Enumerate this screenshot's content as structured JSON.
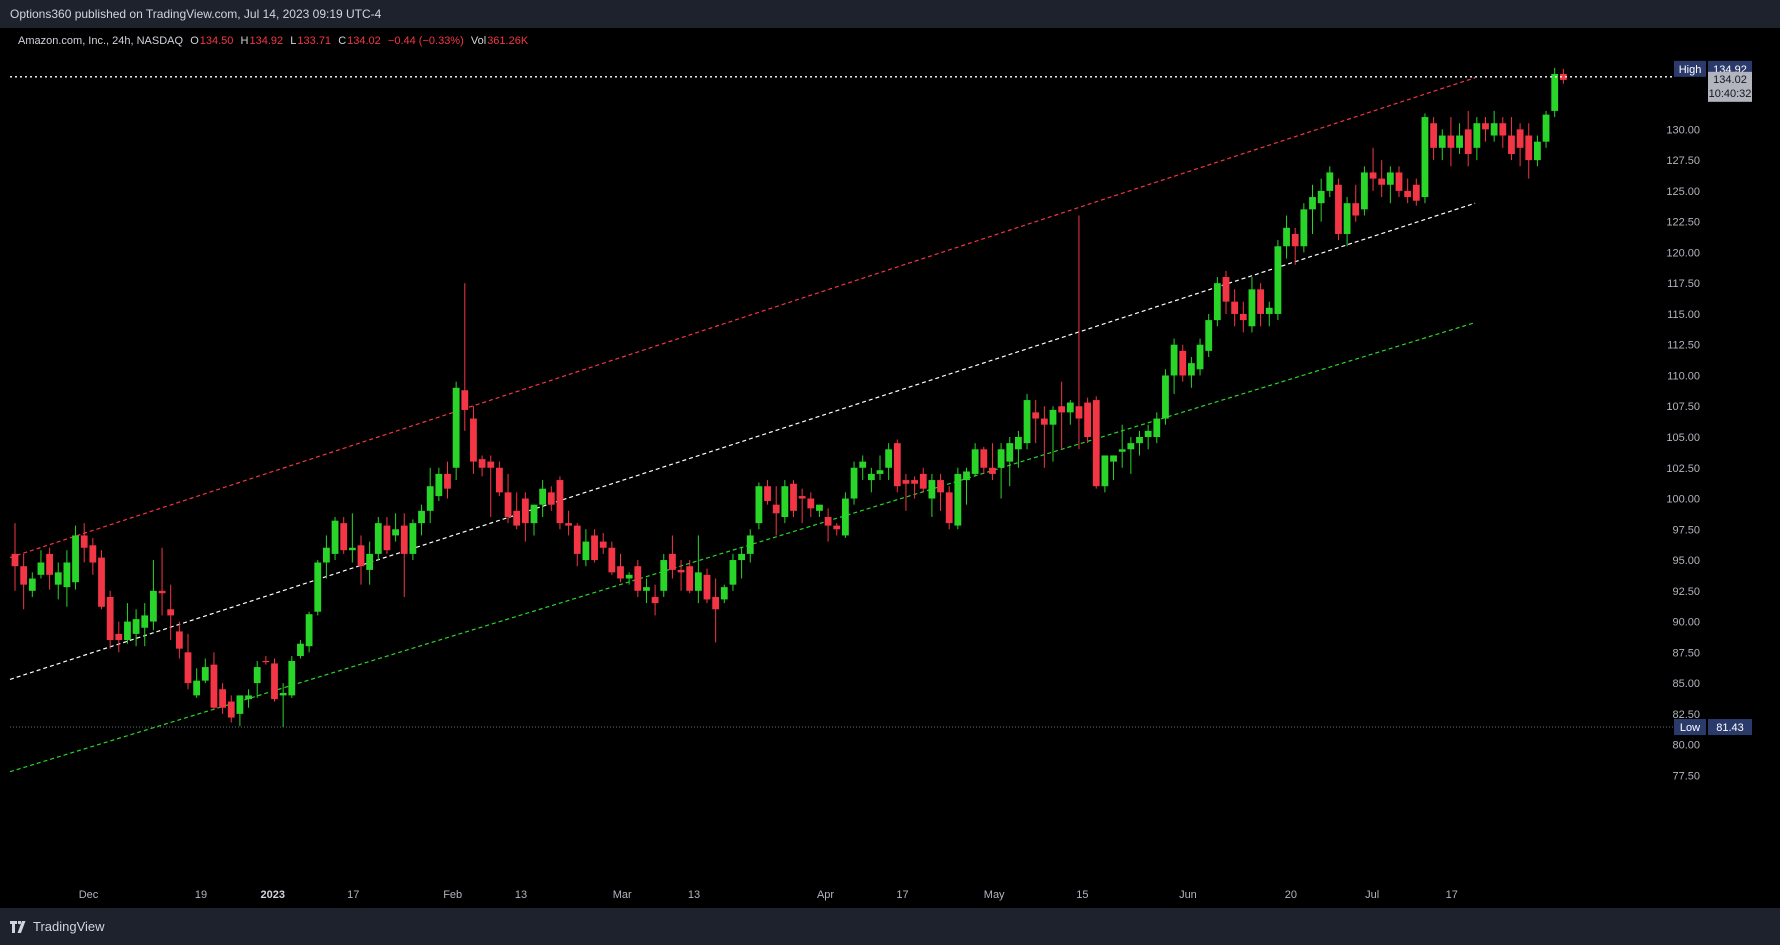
{
  "header": {
    "publisher_line": "Options360 published on TradingView.com, Jul 14, 2023 09:19 UTC-4"
  },
  "legend": {
    "symbol": "Amazon.com, Inc., 24h, NASDAQ",
    "open_label": "O",
    "open": "134.50",
    "high_label": "H",
    "high": "134.92",
    "low_label": "L",
    "low": "133.71",
    "close_label": "C",
    "close": "134.02",
    "change": "−0.44 (−0.33%)",
    "vol_label": "Vol",
    "vol": "361.26K"
  },
  "footer": {
    "brand": "TradingView"
  },
  "colors": {
    "up": "#2ad52a",
    "down": "#f23645",
    "background": "#000000",
    "axis_text": "#b2b5be",
    "channel_upper": "#f23645",
    "channel_mid": "#ffffff",
    "channel_lower": "#2ad52a"
  },
  "chart_data": {
    "type": "candlestick",
    "symbol": "Amazon.com, Inc., 24h, NASDAQ",
    "ylim": [
      75.5,
      137.1
    ],
    "y_ticks": [
      "77.50",
      "80.00",
      "82.50",
      "85.00",
      "87.50",
      "90.00",
      "92.50",
      "95.00",
      "97.50",
      "100.00",
      "102.50",
      "105.00",
      "107.50",
      "110.00",
      "112.50",
      "115.00",
      "117.50",
      "120.00",
      "122.50",
      "125.00",
      "127.50",
      "130.00"
    ],
    "x_ticks": [
      "Dec",
      "19",
      "2023",
      "17",
      "Feb",
      "13",
      "Mar",
      "13",
      "Apr",
      "17",
      "May",
      "15",
      "Jun",
      "20",
      "Jul",
      "17"
    ],
    "x_tick_bars": [
      8.5,
      21.5,
      29.8,
      39.1,
      50.6,
      58.5,
      70.2,
      78.5,
      93.7,
      102.6,
      113.2,
      123.4,
      135.6,
      147.5,
      156.9,
      166.1
    ],
    "markers": {
      "high": {
        "label": "High",
        "value": 134.92
      },
      "low": {
        "label": "Low",
        "value": 81.43
      },
      "last": {
        "value": 134.02,
        "countdown": "10:40:32"
      }
    },
    "channel": {
      "upper": {
        "start": [
          0,
          95.2
        ],
        "end": [
          168.8,
          134.2
        ]
      },
      "middle": {
        "start": [
          0,
          85.3
        ],
        "end": [
          168.8,
          124.0
        ]
      },
      "lower": {
        "start": [
          0,
          77.8
        ],
        "end": [
          168.8,
          114.3
        ]
      }
    },
    "candles": [
      {
        "o": 95.5,
        "h": 98.0,
        "l": 92.5,
        "c": 94.5
      },
      {
        "o": 94.5,
        "h": 95.5,
        "l": 91.0,
        "c": 93.0
      },
      {
        "o": 92.5,
        "h": 94.0,
        "l": 92.0,
        "c": 93.5
      },
      {
        "o": 93.8,
        "h": 95.8,
        "l": 93.5,
        "c": 94.8
      },
      {
        "o": 95.5,
        "h": 96.0,
        "l": 92.6,
        "c": 93.8
      },
      {
        "o": 93.0,
        "h": 94.8,
        "l": 91.8,
        "c": 94.0
      },
      {
        "o": 92.8,
        "h": 95.8,
        "l": 91.2,
        "c": 94.8
      },
      {
        "o": 93.2,
        "h": 97.8,
        "l": 92.6,
        "c": 97.0
      },
      {
        "o": 97.0,
        "h": 98.0,
        "l": 94.8,
        "c": 96.0
      },
      {
        "o": 96.2,
        "h": 96.8,
        "l": 93.8,
        "c": 94.8
      },
      {
        "o": 95.2,
        "h": 95.8,
        "l": 91.0,
        "c": 91.2
      },
      {
        "o": 92.0,
        "h": 92.5,
        "l": 87.8,
        "c": 88.5
      },
      {
        "o": 89.0,
        "h": 90.0,
        "l": 87.5,
        "c": 88.5
      },
      {
        "o": 88.5,
        "h": 91.5,
        "l": 88.2,
        "c": 90.0
      },
      {
        "o": 89.0,
        "h": 91.0,
        "l": 88.0,
        "c": 90.2
      },
      {
        "o": 89.5,
        "h": 91.5,
        "l": 88.0,
        "c": 90.5
      },
      {
        "o": 90.0,
        "h": 95.0,
        "l": 89.3,
        "c": 92.5
      },
      {
        "o": 92.5,
        "h": 96.0,
        "l": 90.5,
        "c": 92.3
      },
      {
        "o": 91.0,
        "h": 93.0,
        "l": 88.5,
        "c": 90.5
      },
      {
        "o": 89.2,
        "h": 90.0,
        "l": 87.0,
        "c": 87.8
      },
      {
        "o": 87.5,
        "h": 89.0,
        "l": 84.5,
        "c": 85.0
      },
      {
        "o": 84.0,
        "h": 86.2,
        "l": 83.8,
        "c": 85.2
      },
      {
        "o": 85.2,
        "h": 87.0,
        "l": 85.0,
        "c": 86.3
      },
      {
        "o": 86.5,
        "h": 87.5,
        "l": 82.8,
        "c": 83.0
      },
      {
        "o": 84.5,
        "h": 85.0,
        "l": 82.5,
        "c": 83.0
      },
      {
        "o": 83.5,
        "h": 84.0,
        "l": 81.8,
        "c": 82.2
      },
      {
        "o": 82.5,
        "h": 84.0,
        "l": 81.5,
        "c": 84.0
      },
      {
        "o": 83.7,
        "h": 84.5,
        "l": 83.0,
        "c": 84.0
      },
      {
        "o": 85.0,
        "h": 86.8,
        "l": 83.8,
        "c": 86.3
      },
      {
        "o": 86.8,
        "h": 87.2,
        "l": 86.5,
        "c": 86.7
      },
      {
        "o": 86.6,
        "h": 87.0,
        "l": 83.5,
        "c": 83.7
      },
      {
        "o": 84.0,
        "h": 85.0,
        "l": 81.4,
        "c": 84.2
      },
      {
        "o": 84.0,
        "h": 87.2,
        "l": 83.8,
        "c": 86.8
      },
      {
        "o": 87.2,
        "h": 88.5,
        "l": 87.0,
        "c": 88.2
      },
      {
        "o": 88.0,
        "h": 90.8,
        "l": 87.5,
        "c": 90.6
      },
      {
        "o": 90.8,
        "h": 95.0,
        "l": 90.5,
        "c": 94.8
      },
      {
        "o": 94.8,
        "h": 97.0,
        "l": 93.5,
        "c": 96.0
      },
      {
        "o": 95.5,
        "h": 98.5,
        "l": 95.0,
        "c": 98.2
      },
      {
        "o": 98.0,
        "h": 98.5,
        "l": 95.5,
        "c": 95.8
      },
      {
        "o": 95.8,
        "h": 98.8,
        "l": 94.8,
        "c": 96.0
      },
      {
        "o": 96.2,
        "h": 97.0,
        "l": 93.0,
        "c": 94.5
      },
      {
        "o": 94.2,
        "h": 96.5,
        "l": 93.0,
        "c": 95.5
      },
      {
        "o": 95.5,
        "h": 98.5,
        "l": 95.0,
        "c": 98.0
      },
      {
        "o": 97.8,
        "h": 98.5,
        "l": 95.5,
        "c": 95.8
      },
      {
        "o": 97.0,
        "h": 98.8,
        "l": 96.5,
        "c": 97.5
      },
      {
        "o": 97.8,
        "h": 98.8,
        "l": 92.0,
        "c": 95.5
      },
      {
        "o": 95.5,
        "h": 98.3,
        "l": 95.0,
        "c": 98.0
      },
      {
        "o": 98.0,
        "h": 99.5,
        "l": 97.0,
        "c": 99.0
      },
      {
        "o": 99.0,
        "h": 102.5,
        "l": 98.0,
        "c": 101.0
      },
      {
        "o": 100.2,
        "h": 102.5,
        "l": 99.8,
        "c": 102.0
      },
      {
        "o": 102.0,
        "h": 103.0,
        "l": 100.0,
        "c": 100.8
      },
      {
        "o": 102.5,
        "h": 109.5,
        "l": 101.5,
        "c": 109.0
      },
      {
        "o": 108.8,
        "h": 117.5,
        "l": 105.5,
        "c": 107.2
      },
      {
        "o": 106.5,
        "h": 107.5,
        "l": 102.0,
        "c": 103.0
      },
      {
        "o": 103.2,
        "h": 103.5,
        "l": 101.8,
        "c": 102.5
      },
      {
        "o": 103.0,
        "h": 103.5,
        "l": 98.5,
        "c": 102.5
      },
      {
        "o": 102.5,
        "h": 103.0,
        "l": 100.2,
        "c": 100.5
      },
      {
        "o": 100.5,
        "h": 102.0,
        "l": 98.0,
        "c": 98.5
      },
      {
        "o": 99.0,
        "h": 100.5,
        "l": 97.5,
        "c": 97.8
      },
      {
        "o": 100.0,
        "h": 100.5,
        "l": 96.5,
        "c": 98.0
      },
      {
        "o": 98.0,
        "h": 99.5,
        "l": 97.0,
        "c": 99.5
      },
      {
        "o": 99.5,
        "h": 101.5,
        "l": 98.5,
        "c": 100.8
      },
      {
        "o": 100.5,
        "h": 101.0,
        "l": 99.0,
        "c": 99.5
      },
      {
        "o": 101.5,
        "h": 101.8,
        "l": 97.5,
        "c": 98.0
      },
      {
        "o": 98.0,
        "h": 99.0,
        "l": 97.0,
        "c": 97.8
      },
      {
        "o": 97.8,
        "h": 98.0,
        "l": 94.5,
        "c": 95.5
      },
      {
        "o": 95.0,
        "h": 97.5,
        "l": 94.5,
        "c": 96.5
      },
      {
        "o": 97.0,
        "h": 97.5,
        "l": 94.8,
        "c": 95.0
      },
      {
        "o": 96.5,
        "h": 97.2,
        "l": 95.5,
        "c": 96.0
      },
      {
        "o": 96.0,
        "h": 96.5,
        "l": 93.8,
        "c": 94.0
      },
      {
        "o": 94.5,
        "h": 95.5,
        "l": 93.2,
        "c": 93.5
      },
      {
        "o": 93.5,
        "h": 94.0,
        "l": 93.0,
        "c": 93.8
      },
      {
        "o": 94.5,
        "h": 95.0,
        "l": 92.0,
        "c": 92.5
      },
      {
        "o": 92.5,
        "h": 93.5,
        "l": 91.5,
        "c": 92.8
      },
      {
        "o": 92.0,
        "h": 93.0,
        "l": 90.5,
        "c": 91.5
      },
      {
        "o": 92.5,
        "h": 95.5,
        "l": 92.0,
        "c": 95.0
      },
      {
        "o": 95.5,
        "h": 97.0,
        "l": 93.5,
        "c": 94.2
      },
      {
        "o": 94.2,
        "h": 95.0,
        "l": 92.5,
        "c": 94.0
      },
      {
        "o": 94.5,
        "h": 95.0,
        "l": 92.3,
        "c": 92.5
      },
      {
        "o": 92.5,
        "h": 97.0,
        "l": 91.5,
        "c": 94.0
      },
      {
        "o": 93.8,
        "h": 94.3,
        "l": 91.5,
        "c": 91.8
      },
      {
        "o": 92.0,
        "h": 93.5,
        "l": 88.3,
        "c": 91.0
      },
      {
        "o": 91.8,
        "h": 93.0,
        "l": 91.5,
        "c": 92.8
      },
      {
        "o": 93.0,
        "h": 95.5,
        "l": 92.5,
        "c": 95.0
      },
      {
        "o": 95.0,
        "h": 96.0,
        "l": 93.5,
        "c": 95.5
      },
      {
        "o": 95.5,
        "h": 97.5,
        "l": 94.8,
        "c": 97.0
      },
      {
        "o": 98.0,
        "h": 101.3,
        "l": 97.5,
        "c": 101.0
      },
      {
        "o": 101.0,
        "h": 101.5,
        "l": 99.5,
        "c": 99.8
      },
      {
        "o": 99.5,
        "h": 101.0,
        "l": 97.0,
        "c": 98.8
      },
      {
        "o": 98.5,
        "h": 101.5,
        "l": 98.0,
        "c": 101.0
      },
      {
        "o": 101.2,
        "h": 101.5,
        "l": 98.5,
        "c": 99.0
      },
      {
        "o": 100.2,
        "h": 100.8,
        "l": 98.0,
        "c": 100.0
      },
      {
        "o": 100.0,
        "h": 100.5,
        "l": 98.5,
        "c": 99.2
      },
      {
        "o": 99.0,
        "h": 99.5,
        "l": 98.5,
        "c": 99.5
      },
      {
        "o": 98.5,
        "h": 99.2,
        "l": 96.5,
        "c": 97.8
      },
      {
        "o": 97.8,
        "h": 98.0,
        "l": 97.0,
        "c": 97.5
      },
      {
        "o": 97.0,
        "h": 100.5,
        "l": 96.8,
        "c": 100.0
      },
      {
        "o": 100.0,
        "h": 103.0,
        "l": 99.5,
        "c": 102.5
      },
      {
        "o": 102.5,
        "h": 103.5,
        "l": 101.5,
        "c": 103.0
      },
      {
        "o": 101.5,
        "h": 102.5,
        "l": 100.5,
        "c": 102.0
      },
      {
        "o": 102.0,
        "h": 103.5,
        "l": 101.5,
        "c": 102.3
      },
      {
        "o": 102.5,
        "h": 104.5,
        "l": 101.5,
        "c": 104.0
      },
      {
        "o": 104.5,
        "h": 104.8,
        "l": 100.5,
        "c": 101.0
      },
      {
        "o": 101.5,
        "h": 102.0,
        "l": 99.0,
        "c": 101.2
      },
      {
        "o": 101.5,
        "h": 101.8,
        "l": 100.0,
        "c": 101.2
      },
      {
        "o": 102.0,
        "h": 102.5,
        "l": 100.5,
        "c": 100.8
      },
      {
        "o": 100.0,
        "h": 102.0,
        "l": 98.5,
        "c": 101.5
      },
      {
        "o": 101.5,
        "h": 102.0,
        "l": 99.0,
        "c": 100.5
      },
      {
        "o": 100.5,
        "h": 101.0,
        "l": 97.5,
        "c": 98.0
      },
      {
        "o": 97.8,
        "h": 102.5,
        "l": 97.5,
        "c": 102.0
      },
      {
        "o": 101.5,
        "h": 102.5,
        "l": 99.5,
        "c": 102.2
      },
      {
        "o": 102.0,
        "h": 104.5,
        "l": 101.8,
        "c": 104.0
      },
      {
        "o": 104.0,
        "h": 104.2,
        "l": 102.0,
        "c": 102.5
      },
      {
        "o": 102.5,
        "h": 104.5,
        "l": 101.5,
        "c": 102.0
      },
      {
        "o": 102.5,
        "h": 104.5,
        "l": 100.0,
        "c": 104.0
      },
      {
        "o": 103.0,
        "h": 105.0,
        "l": 101.0,
        "c": 104.5
      },
      {
        "o": 104.0,
        "h": 105.5,
        "l": 102.5,
        "c": 105.0
      },
      {
        "o": 104.5,
        "h": 108.5,
        "l": 104.0,
        "c": 108.0
      },
      {
        "o": 107.0,
        "h": 108.0,
        "l": 104.5,
        "c": 106.5
      },
      {
        "o": 106.5,
        "h": 107.5,
        "l": 102.5,
        "c": 106.0
      },
      {
        "o": 106.0,
        "h": 107.5,
        "l": 103.0,
        "c": 107.2
      },
      {
        "o": 107.5,
        "h": 109.5,
        "l": 104.0,
        "c": 107.0
      },
      {
        "o": 107.0,
        "h": 108.0,
        "l": 106.0,
        "c": 107.8
      },
      {
        "o": 107.5,
        "h": 123.0,
        "l": 104.0,
        "c": 106.5
      },
      {
        "o": 107.8,
        "h": 108.2,
        "l": 104.5,
        "c": 105.0
      },
      {
        "o": 108.0,
        "h": 108.3,
        "l": 100.8,
        "c": 101.0
      },
      {
        "o": 101.0,
        "h": 103.5,
        "l": 100.5,
        "c": 103.5
      },
      {
        "o": 103.0,
        "h": 103.5,
        "l": 101.5,
        "c": 103.5
      },
      {
        "o": 103.8,
        "h": 106.0,
        "l": 102.5,
        "c": 104.0
      },
      {
        "o": 104.0,
        "h": 105.0,
        "l": 102.0,
        "c": 104.5
      },
      {
        "o": 104.5,
        "h": 105.5,
        "l": 103.5,
        "c": 105.0
      },
      {
        "o": 105.0,
        "h": 106.0,
        "l": 104.0,
        "c": 105.5
      },
      {
        "o": 105.0,
        "h": 107.0,
        "l": 104.5,
        "c": 106.5
      },
      {
        "o": 106.5,
        "h": 110.5,
        "l": 106.0,
        "c": 110.0
      },
      {
        "o": 110.0,
        "h": 113.0,
        "l": 108.5,
        "c": 112.5
      },
      {
        "o": 112.0,
        "h": 112.5,
        "l": 109.5,
        "c": 110.0
      },
      {
        "o": 110.0,
        "h": 111.5,
        "l": 109.0,
        "c": 111.0
      },
      {
        "o": 110.5,
        "h": 113.0,
        "l": 110.0,
        "c": 112.5
      },
      {
        "o": 112.0,
        "h": 115.0,
        "l": 111.5,
        "c": 114.5
      },
      {
        "o": 114.5,
        "h": 118.0,
        "l": 114.0,
        "c": 117.5
      },
      {
        "o": 118.0,
        "h": 118.5,
        "l": 115.0,
        "c": 116.0
      },
      {
        "o": 116.0,
        "h": 117.0,
        "l": 114.0,
        "c": 115.0
      },
      {
        "o": 115.0,
        "h": 116.0,
        "l": 113.5,
        "c": 114.5
      },
      {
        "o": 114.0,
        "h": 118.0,
        "l": 113.5,
        "c": 117.0
      },
      {
        "o": 117.0,
        "h": 117.5,
        "l": 114.0,
        "c": 115.0
      },
      {
        "o": 115.0,
        "h": 116.0,
        "l": 114.0,
        "c": 115.5
      },
      {
        "o": 115.0,
        "h": 121.0,
        "l": 114.5,
        "c": 120.5
      },
      {
        "o": 120.5,
        "h": 123.0,
        "l": 119.5,
        "c": 122.0
      },
      {
        "o": 121.5,
        "h": 122.0,
        "l": 119.0,
        "c": 120.5
      },
      {
        "o": 120.5,
        "h": 124.0,
        "l": 120.0,
        "c": 123.5
      },
      {
        "o": 123.5,
        "h": 125.5,
        "l": 121.5,
        "c": 124.5
      },
      {
        "o": 124.0,
        "h": 126.0,
        "l": 122.5,
        "c": 125.0
      },
      {
        "o": 125.0,
        "h": 127.0,
        "l": 124.5,
        "c": 126.5
      },
      {
        "o": 125.5,
        "h": 126.0,
        "l": 121.0,
        "c": 121.5
      },
      {
        "o": 121.5,
        "h": 124.5,
        "l": 120.5,
        "c": 124.0
      },
      {
        "o": 124.0,
        "h": 125.5,
        "l": 122.5,
        "c": 123.0
      },
      {
        "o": 123.5,
        "h": 127.0,
        "l": 123.0,
        "c": 126.5
      },
      {
        "o": 126.5,
        "h": 128.5,
        "l": 125.0,
        "c": 126.0
      },
      {
        "o": 126.0,
        "h": 127.5,
        "l": 124.5,
        "c": 125.5
      },
      {
        "o": 125.5,
        "h": 127.0,
        "l": 124.0,
        "c": 126.5
      },
      {
        "o": 126.5,
        "h": 127.0,
        "l": 124.5,
        "c": 125.0
      },
      {
        "o": 125.0,
        "h": 126.0,
        "l": 124.0,
        "c": 124.5
      },
      {
        "o": 125.5,
        "h": 126.0,
        "l": 123.8,
        "c": 124.2
      },
      {
        "o": 124.5,
        "h": 131.3,
        "l": 124.0,
        "c": 131.0
      },
      {
        "o": 130.5,
        "h": 131.0,
        "l": 127.5,
        "c": 128.5
      },
      {
        "o": 128.5,
        "h": 130.0,
        "l": 127.5,
        "c": 129.5
      },
      {
        "o": 129.5,
        "h": 131.0,
        "l": 127.0,
        "c": 128.5
      },
      {
        "o": 128.5,
        "h": 130.5,
        "l": 128.0,
        "c": 129.5
      },
      {
        "o": 130.0,
        "h": 131.5,
        "l": 127.0,
        "c": 128.0
      },
      {
        "o": 128.5,
        "h": 131.0,
        "l": 127.5,
        "c": 130.5
      },
      {
        "o": 130.5,
        "h": 131.0,
        "l": 129.0,
        "c": 130.0
      },
      {
        "o": 129.5,
        "h": 131.5,
        "l": 129.0,
        "c": 130.5
      },
      {
        "o": 130.5,
        "h": 131.0,
        "l": 128.5,
        "c": 129.5
      },
      {
        "o": 129.5,
        "h": 131.0,
        "l": 127.5,
        "c": 128.0
      },
      {
        "o": 130.0,
        "h": 130.5,
        "l": 127.0,
        "c": 128.5
      },
      {
        "o": 129.5,
        "h": 130.5,
        "l": 126.0,
        "c": 127.5
      },
      {
        "o": 127.5,
        "h": 129.5,
        "l": 127.0,
        "c": 129.0
      },
      {
        "o": 129.0,
        "h": 131.5,
        "l": 128.5,
        "c": 131.2
      },
      {
        "o": 131.5,
        "h": 135.0,
        "l": 131.0,
        "c": 134.5
      },
      {
        "o": 134.5,
        "h": 134.92,
        "l": 133.71,
        "c": 134.02
      }
    ]
  }
}
